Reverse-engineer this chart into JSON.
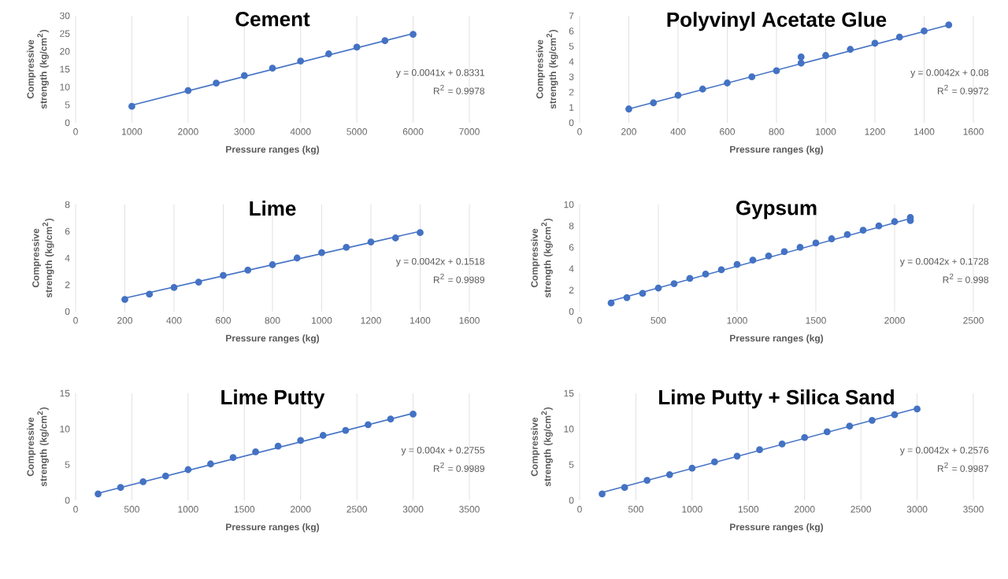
{
  "chart_data": [
    {
      "type": "scatter",
      "title": "Cement",
      "xlabel": "Pressure ranges (kg)",
      "ylabel": "Compressive strength (kg/cm$^{2}$)",
      "xlim": [
        0,
        7000
      ],
      "ylim": [
        0,
        30
      ],
      "xticks": [
        0,
        1000,
        2000,
        3000,
        4000,
        5000,
        6000,
        7000
      ],
      "yticks": [
        0,
        5,
        10,
        15,
        20,
        25,
        30
      ],
      "grid": "x",
      "marker": "circle",
      "annotations": [
        "y = 0.0041x + 0.8331",
        "R$^{2}$ = 0.9978"
      ],
      "series": [
        {
          "color": "#4472c4",
          "x": [
            1000,
            2000,
            2500,
            3000,
            3500,
            4000,
            4500,
            5000,
            5500,
            6000
          ],
          "values": [
            4.6,
            9,
            11.1,
            13.2,
            15.3,
            17.3,
            19.3,
            21.2,
            23,
            24.8
          ]
        },
        {
          "type": "line",
          "marker": "none",
          "color": "#4472c4",
          "x": [
            1000,
            6000
          ],
          "values": [
            4.9,
            25.0
          ]
        }
      ]
    },
    {
      "type": "scatter",
      "title": "Polyvinyl Acetate Glue",
      "xlabel": "Pressure ranges (kg)",
      "ylabel": "Compressive strength (kg/cm$^{2}$)",
      "xlim": [
        0,
        1600
      ],
      "ylim": [
        0,
        7
      ],
      "xticks": [
        0,
        200,
        400,
        600,
        800,
        1000,
        1200,
        1400,
        1600
      ],
      "yticks": [
        0,
        1,
        2,
        3,
        4,
        5,
        6,
        7
      ],
      "grid": "x",
      "marker": "circle",
      "annotations": [
        "y = 0.0042x + 0.08",
        "R$^{2}$ = 0.9972"
      ],
      "series": [
        {
          "color": "#4472c4",
          "x": [
            200,
            300,
            400,
            500,
            600,
            700,
            800,
            900,
            900,
            1000,
            1100,
            1200,
            1300,
            1400,
            1500
          ],
          "values": [
            0.9,
            1.3,
            1.8,
            2.2,
            2.6,
            3.0,
            3.4,
            3.9,
            4.3,
            4.4,
            4.8,
            5.2,
            5.6,
            6.0,
            6.4
          ]
        },
        {
          "type": "line",
          "marker": "none",
          "color": "#4472c4",
          "x": [
            200,
            1500
          ],
          "values": [
            0.9,
            6.4
          ]
        }
      ]
    },
    {
      "type": "scatter",
      "title": "Lime",
      "xlabel": "Pressure ranges (kg)",
      "ylabel": "Compressive strength (kg/cm$^{2}$)",
      "xlim": [
        0,
        1600
      ],
      "ylim": [
        0,
        8
      ],
      "xticks": [
        0,
        200,
        400,
        600,
        800,
        1000,
        1200,
        1400,
        1600
      ],
      "yticks": [
        0,
        2,
        4,
        6,
        8
      ],
      "grid": "x",
      "marker": "circle",
      "annotations": [
        "y = 0.0042x + 0.1518",
        "R$^{2}$ = 0.9989"
      ],
      "series": [
        {
          "color": "#4472c4",
          "x": [
            200,
            300,
            400,
            500,
            600,
            700,
            800,
            900,
            1000,
            1100,
            1200,
            1300,
            1400
          ],
          "values": [
            0.9,
            1.3,
            1.8,
            2.2,
            2.7,
            3.1,
            3.5,
            4.0,
            4.4,
            4.8,
            5.2,
            5.5,
            5.9
          ]
        },
        {
          "type": "line",
          "marker": "none",
          "color": "#4472c4",
          "x": [
            200,
            1400
          ],
          "values": [
            1.0,
            6.0
          ]
        }
      ]
    },
    {
      "type": "scatter",
      "title": "Gypsum",
      "xlabel": "Pressure ranges (kg)",
      "ylabel": "Compressive strength (kg/cm$^{2}$)",
      "xlim": [
        0,
        2500
      ],
      "ylim": [
        0,
        10
      ],
      "xticks": [
        0,
        500,
        1000,
        1500,
        2000,
        2500
      ],
      "yticks": [
        0,
        2,
        4,
        6,
        8,
        10
      ],
      "grid": "x",
      "marker": "circle",
      "annotations": [
        "y = 0.0042x + 0.1728",
        "R$^{2}$ = 0.998"
      ],
      "series": [
        {
          "color": "#4472c4",
          "x": [
            200,
            300,
            400,
            500,
            600,
            700,
            800,
            900,
            1000,
            1100,
            1200,
            1300,
            1400,
            1500,
            1600,
            1700,
            1800,
            1900,
            2000,
            2100,
            2100
          ],
          "values": [
            0.8,
            1.3,
            1.7,
            2.2,
            2.6,
            3.1,
            3.5,
            3.9,
            4.4,
            4.8,
            5.2,
            5.6,
            6.0,
            6.4,
            6.8,
            7.2,
            7.6,
            8.0,
            8.4,
            8.5,
            8.8
          ]
        },
        {
          "type": "line",
          "marker": "none",
          "color": "#4472c4",
          "x": [
            200,
            2100
          ],
          "values": [
            1.0,
            8.7
          ]
        }
      ]
    },
    {
      "type": "scatter",
      "title": "Lime Putty",
      "xlabel": "Pressure ranges (kg)",
      "ylabel": "Compressive strength (kg/cm$^{2}$)",
      "xlim": [
        0,
        3500
      ],
      "ylim": [
        0,
        15
      ],
      "xticks": [
        0,
        500,
        1000,
        1500,
        2000,
        2500,
        3000,
        3500
      ],
      "yticks": [
        0,
        5,
        10,
        15
      ],
      "grid": "x",
      "marker": "circle",
      "annotations": [
        "y = 0.004x + 0.2755",
        "R$^{2}$ = 0.9989"
      ],
      "series": [
        {
          "color": "#4472c4",
          "x": [
            200,
            400,
            600,
            800,
            1000,
            1200,
            1400,
            1600,
            1800,
            2000,
            2200,
            2400,
            2600,
            2800,
            3000
          ],
          "values": [
            0.9,
            1.8,
            2.6,
            3.4,
            4.3,
            5.1,
            6.0,
            6.8,
            7.6,
            8.4,
            9.1,
            9.8,
            10.6,
            11.4,
            12.1
          ]
        },
        {
          "type": "line",
          "marker": "none",
          "color": "#4472c4",
          "x": [
            200,
            3000
          ],
          "values": [
            1.0,
            12.2
          ]
        }
      ]
    },
    {
      "type": "scatter",
      "title": "Lime Putty + Silica Sand",
      "xlabel": "Pressure ranges (kg)",
      "ylabel": "Compressive strength (kg/cm$^{2}$)",
      "xlim": [
        0,
        3500
      ],
      "ylim": [
        0,
        15
      ],
      "xticks": [
        0,
        500,
        1000,
        1500,
        2000,
        2500,
        3000,
        3500
      ],
      "yticks": [
        0,
        5,
        10,
        15
      ],
      "grid": "x",
      "marker": "circle",
      "annotations": [
        "y = 0.0042x + 0.2576",
        "R$^{2}$ = 0.9987"
      ],
      "series": [
        {
          "color": "#4472c4",
          "x": [
            200,
            400,
            600,
            800,
            1000,
            1200,
            1400,
            1600,
            1800,
            2000,
            2200,
            2400,
            2600,
            2800,
            3000
          ],
          "values": [
            0.9,
            1.8,
            2.8,
            3.6,
            4.5,
            5.4,
            6.2,
            7.1,
            7.9,
            8.8,
            9.6,
            10.4,
            11.2,
            12.0,
            12.8
          ]
        },
        {
          "type": "line",
          "marker": "none",
          "color": "#4472c4",
          "x": [
            200,
            3000
          ],
          "values": [
            1.1,
            12.9
          ]
        }
      ]
    }
  ]
}
